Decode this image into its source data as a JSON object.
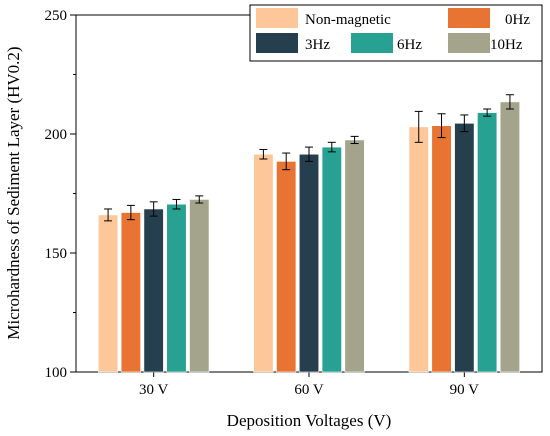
{
  "chart_data": {
    "type": "bar",
    "title": "",
    "xlabel": "Deposition Voltages (V)",
    "ylabel": "Microhardness of Sediment Layer  (HV0.2)",
    "categories": [
      "30 V",
      "60 V",
      "90 V"
    ],
    "ylim": [
      100,
      250
    ],
    "yticks": [
      100,
      150,
      200,
      250
    ],
    "grid": false,
    "legend_position": "top-right",
    "series": [
      {
        "name": "Non-magnetic",
        "color": "#FDC799",
        "values": [
          166,
          191.5,
          203
        ],
        "errors": [
          2.5,
          2,
          6.5
        ]
      },
      {
        "name": "0Hz",
        "color": "#E87434",
        "values": [
          167,
          188.5,
          203.5
        ],
        "errors": [
          3,
          3.5,
          5
        ]
      },
      {
        "name": "3Hz",
        "color": "#253F4E",
        "values": [
          168.5,
          191.5,
          204.5
        ],
        "errors": [
          3,
          3,
          3.5
        ]
      },
      {
        "name": "6Hz",
        "color": "#27A292",
        "values": [
          170.5,
          194.5,
          209
        ],
        "errors": [
          2,
          2,
          1.5
        ]
      },
      {
        "name": "10Hz",
        "color": "#A4A48D",
        "values": [
          172.5,
          197.5,
          213.5
        ],
        "errors": [
          1.5,
          1.5,
          3
        ]
      }
    ]
  }
}
